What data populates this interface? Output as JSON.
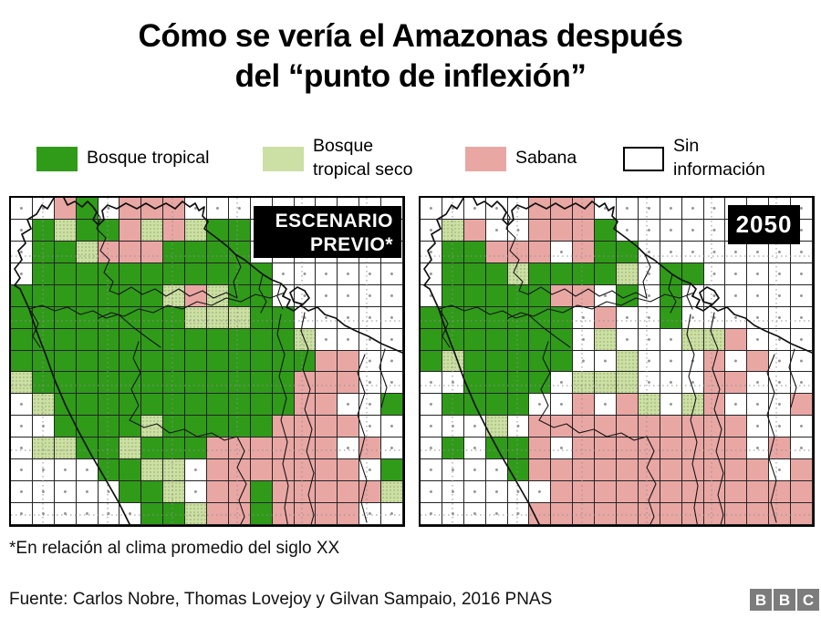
{
  "title": {
    "text": "Cómo se vería el Amazonas después\ndel “punto de inflexión”"
  },
  "legend": {
    "items": [
      {
        "label": "Bosque tropical",
        "color": "#2f9b19",
        "key": "G"
      },
      {
        "label": "Bosque\ntropical seco",
        "color": "#ccdfa4",
        "key": "L"
      },
      {
        "label": "Sabana",
        "color": "#e9a7a4",
        "key": "P"
      },
      {
        "label": "Sin\ninformación",
        "color": "#ffffff",
        "key": "W"
      }
    ]
  },
  "maps": [
    {
      "label": "ESCENARIO\nPREVIO*",
      "grid": [
        "WWPGWPPPWWWWWWWWWW",
        "WGLGGPLPLGGWWWWWWW",
        "WGGLPPPGGGGWWWWWWW",
        "WGGGGGGGGGGGWWWWWW",
        "GGGGGGGLPLGGWWWWWW",
        "GGGGGGGGLLLGGWWWWW",
        "GGGGGGGGGGGGGLWWWW",
        "GGGGGGGGGGGGGGPPWW",
        "LGGGGGGGGGGGGPPPWW",
        "WLGGGGGGGGGGGPPWWG",
        "WWGGGGLGGGGGPPPPWW",
        "WLLGGLGGGPPPPPPWPW",
        "WWWWGGLLWPPPPPPPWG",
        "WWWWWGGLWPPGPPPPPL",
        "WWWWWWGGLPPGPPPPWW"
      ]
    },
    {
      "label": "2050",
      "grid": [
        "WWWWWPPPWWWWWWWWWW",
        "WLPWWPPPGWWWWWWWWW",
        "WGGPPPWPGGWWWWWWWW",
        "WGGGLGGGGLWGGWWWWW",
        "WGGGGGPPWGWGWWWWWW",
        "GGGGGGGWPWWGWWWWWW",
        "GGGGGGGWLWWWLLPWWW",
        "GLGGGGGWWLWWWPWPWW",
        "WWGGGGWLLLWWWPPWWW",
        "WGGGGWWPWPLWLPWWWP",
        "WWWLWPPPPPPPPPPWWW",
        "WGWGGPWPPPPPPPPWPW",
        "WWWWGPPPPPPPPPPPWP",
        "WWWWWWPPPPPPPPPPPP",
        "WWWWWPPPPPPPPPPPPP"
      ]
    }
  ],
  "footnote": "*En relación al clima promedio del siglo XX",
  "source": "Fuente: Carlos Nobre, Thomas Lovejoy y Gilvan Sampaio, 2016 PNAS",
  "logo": {
    "letters": [
      "B",
      "B",
      "C"
    ]
  },
  "colors": {
    "forest": "#2f9b19",
    "dry": "#ccdfa4",
    "savanna": "#e9a7a4",
    "grid_line": "#242424",
    "label_bg": "#000000",
    "label_fg": "#ffffff",
    "logo_gray": "#7c7c7c"
  }
}
